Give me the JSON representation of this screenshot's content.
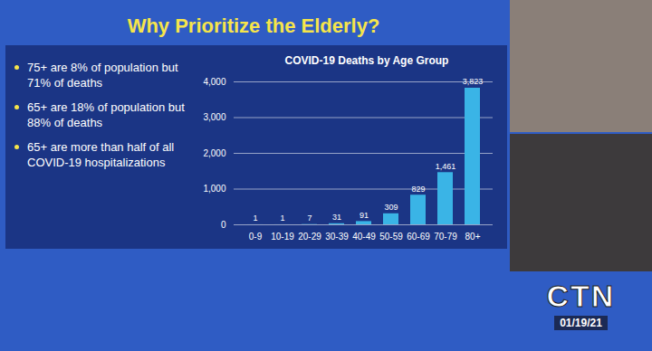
{
  "slide": {
    "heading": "Why Prioritize the Elderly?",
    "bullets": [
      "75+ are 8% of population but 71% of deaths",
      "65+ are 18% of population but 88% of deaths",
      "65+ are more than half of all COVID-19 hospitalizations"
    ]
  },
  "chart_data": {
    "type": "bar",
    "title": "COVID-19 Deaths by Age Group",
    "categories": [
      "0-9",
      "10-19",
      "20-29",
      "30-39",
      "40-49",
      "50-59",
      "60-69",
      "70-79",
      "80+"
    ],
    "values": [
      1,
      1,
      7,
      31,
      91,
      309,
      829,
      1461,
      3823
    ],
    "value_labels": [
      "1",
      "1",
      "7",
      "31",
      "91",
      "309",
      "829",
      "1,461",
      "3,823"
    ],
    "color": "#3ab4e6",
    "ylim": [
      0,
      4000
    ],
    "yticks": [
      0,
      {
        "value": 1000,
        "label": "1,000"
      },
      {
        "value": 2000,
        "label": "2,000"
      },
      {
        "value": 3000,
        "label": "3,000"
      },
      {
        "value": 4000,
        "label": "4,000"
      }
    ],
    "grid": true,
    "data_labels": true
  },
  "broadcast": {
    "logo": "CTN",
    "date": "01/19/21"
  }
}
